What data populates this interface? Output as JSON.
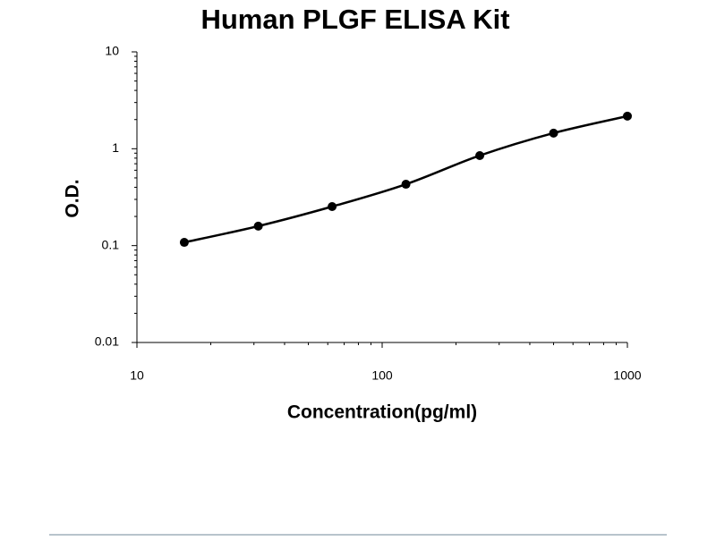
{
  "chart_data": {
    "type": "scatter",
    "title": "Human PLGF ELISA Kit",
    "x_label": "Concentration(pg/ml)",
    "y_label": "O.D.",
    "x": [
      15.6,
      31.25,
      62.5,
      125,
      250,
      500,
      1000
    ],
    "values": [
      0.108,
      0.159,
      0.253,
      0.43,
      0.85,
      1.45,
      2.17
    ],
    "color": "#000000",
    "log_x": true,
    "log_y": true,
    "minor_ticks": true,
    "curve": true,
    "xlim": [
      10,
      1000
    ],
    "ylim": [
      0.01,
      10
    ],
    "xticks": [
      10,
      100,
      1000
    ],
    "yticks": [
      0.01,
      0.1,
      1,
      10
    ]
  }
}
